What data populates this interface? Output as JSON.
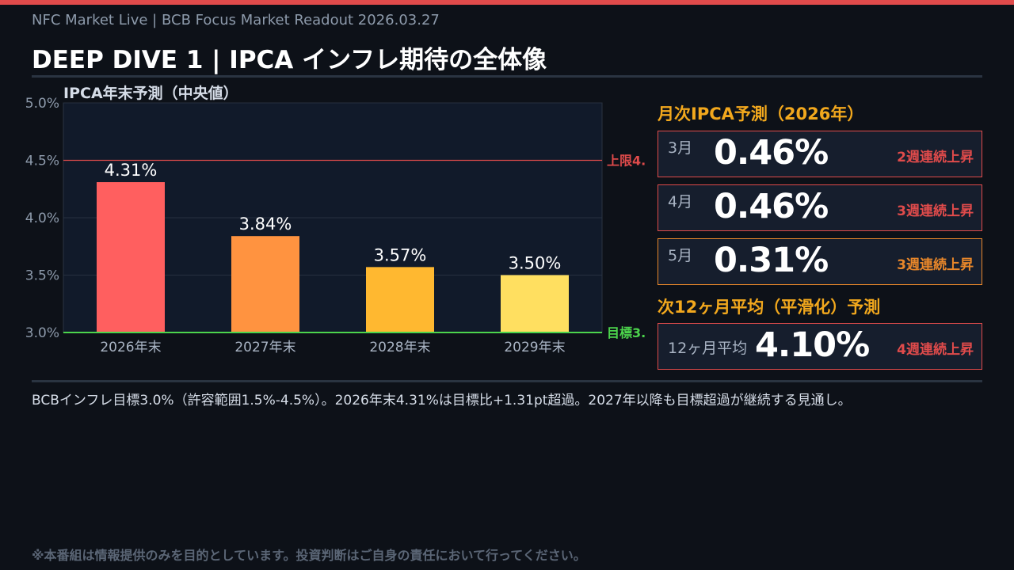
{
  "header": {
    "subtitle": "NFC Market Live  |  BCB Focus Market Readout  2026.03.27",
    "title": "DEEP DIVE 1  |  IPCA インフレ期待の全体像"
  },
  "chart_data": {
    "type": "bar",
    "title": "IPCA年末予測（中央値）",
    "categories": [
      "2026年末",
      "2027年末",
      "2028年末",
      "2029年末"
    ],
    "values": [
      4.31,
      3.84,
      3.57,
      3.5
    ],
    "data_labels": [
      "4.31%",
      "3.84%",
      "3.57%",
      "3.50%"
    ],
    "colors": [
      "#ff5f5f",
      "#ff9340",
      "#ffb830",
      "#ffdf60"
    ],
    "ylim": [
      3.0,
      5.0
    ],
    "yticks": [
      "3.0%",
      "3.5%",
      "4.0%",
      "4.5%",
      "5.0%"
    ],
    "grid": true,
    "reference_lines": [
      {
        "value": 4.5,
        "label": "上限4.",
        "color": "#e04b4b"
      },
      {
        "value": 3.0,
        "label": "目標3.",
        "color": "#4cd44c"
      }
    ]
  },
  "monthly": {
    "title": "月次IPCA予測（2026年）",
    "items": [
      {
        "month": "3月",
        "value": "0.46%",
        "streak": "2週連続上昇",
        "color": "#e04b4b"
      },
      {
        "month": "4月",
        "value": "0.46%",
        "streak": "3週連続上昇",
        "color": "#e04b4b"
      },
      {
        "month": "5月",
        "value": "0.31%",
        "streak": "3週連続上昇",
        "color": "#e8872a"
      }
    ]
  },
  "avg12": {
    "title": "次12ヶ月平均（平滑化）予測",
    "label": "12ヶ月平均",
    "value": "4.10%",
    "streak": "4週連続上昇",
    "color": "#e04b4b"
  },
  "note": "BCBインフレ目標3.0%（許容範囲1.5%-4.5%）。2026年末4.31%は目標比+1.31pt超過。2027年以降も目標超過が継続する見通し。",
  "disclaimer": "※本番組は情報提供のみを目的としています。投資判断はご自身の責任において行ってください。"
}
